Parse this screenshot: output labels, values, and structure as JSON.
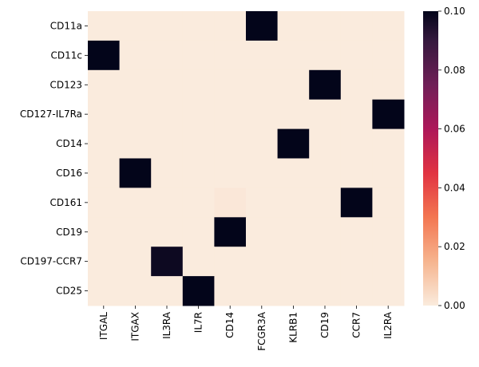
{
  "chart_data": {
    "type": "heatmap",
    "rows": [
      "CD11a",
      "CD11c",
      "CD123",
      "CD127-IL7Ra",
      "CD14",
      "CD16",
      "CD161",
      "CD19",
      "CD197-CCR7",
      "CD25"
    ],
    "columns": [
      "ITGAL",
      "ITGAX",
      "IL3RA",
      "IL7R",
      "CD14",
      "FCGR3A",
      "KLRB1",
      "CD19",
      "CCR7",
      "IL2RA"
    ],
    "values": [
      [
        0,
        0,
        0,
        0,
        0,
        0.1,
        0,
        0,
        0,
        0
      ],
      [
        0.1,
        0,
        0,
        0,
        0,
        0,
        0,
        0,
        0,
        0
      ],
      [
        0,
        0,
        0,
        0,
        0,
        0,
        0,
        0.1,
        0,
        0
      ],
      [
        0,
        0,
        0,
        0,
        0,
        0,
        0,
        0,
        0,
        0.1
      ],
      [
        0,
        0,
        0,
        0,
        0,
        0,
        0.1,
        0,
        0,
        0
      ],
      [
        0,
        0.1,
        0,
        0,
        0,
        0,
        0,
        0,
        0,
        0
      ],
      [
        0,
        0,
        0,
        0,
        0.001,
        0,
        0,
        0,
        0.1,
        0
      ],
      [
        0,
        0,
        0,
        0,
        0.1,
        0,
        0,
        0,
        0,
        0
      ],
      [
        0,
        0,
        0.098,
        0,
        0,
        0,
        0,
        0,
        0,
        0
      ],
      [
        0,
        0,
        0,
        0.1,
        0,
        0,
        0,
        0,
        0,
        0
      ]
    ],
    "vmin": 0,
    "vmax": 0.1,
    "colorbar_ticks": [
      "0.00",
      "0.02",
      "0.04",
      "0.06",
      "0.08",
      "0.10"
    ],
    "colormap": "rocket_r",
    "title": "",
    "xlabel": "",
    "ylabel": "",
    "grid": false
  }
}
